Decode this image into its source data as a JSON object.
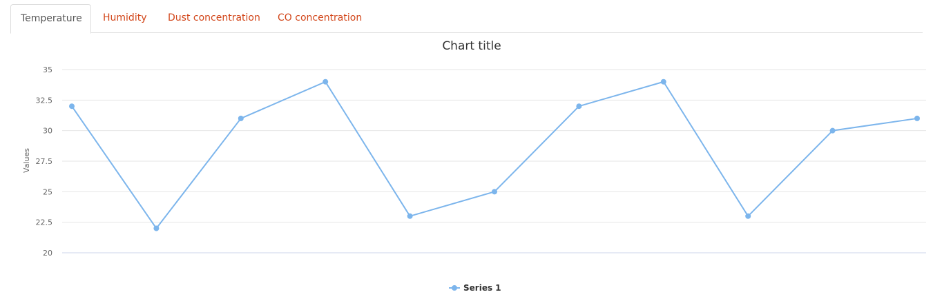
{
  "tabs": [
    {
      "label": "Temperature",
      "active": true
    },
    {
      "label": "Humidity",
      "active": false
    },
    {
      "label": "Dust concentration",
      "active": false
    },
    {
      "label": "CO concentration",
      "active": false
    }
  ],
  "colors": {
    "tab_link": "#d2461a",
    "series": "#7cb5ec",
    "grid": "#e6e6e6"
  },
  "chart_data": {
    "type": "line",
    "title": "Chart title",
    "ylabel": "Values",
    "xlabel": "",
    "ylim": [
      20,
      35
    ],
    "yticks": [
      "20",
      "22.5",
      "25",
      "27.5",
      "30",
      "32.5",
      "35"
    ],
    "ytick_values": [
      20,
      22.5,
      25,
      27.5,
      30,
      32.5,
      35
    ],
    "grid": true,
    "legend_position": "bottom-center",
    "series": [
      {
        "name": "Series 1",
        "values": [
          32,
          22,
          31,
          34,
          23,
          25,
          32,
          34,
          23,
          30,
          31
        ]
      }
    ]
  }
}
